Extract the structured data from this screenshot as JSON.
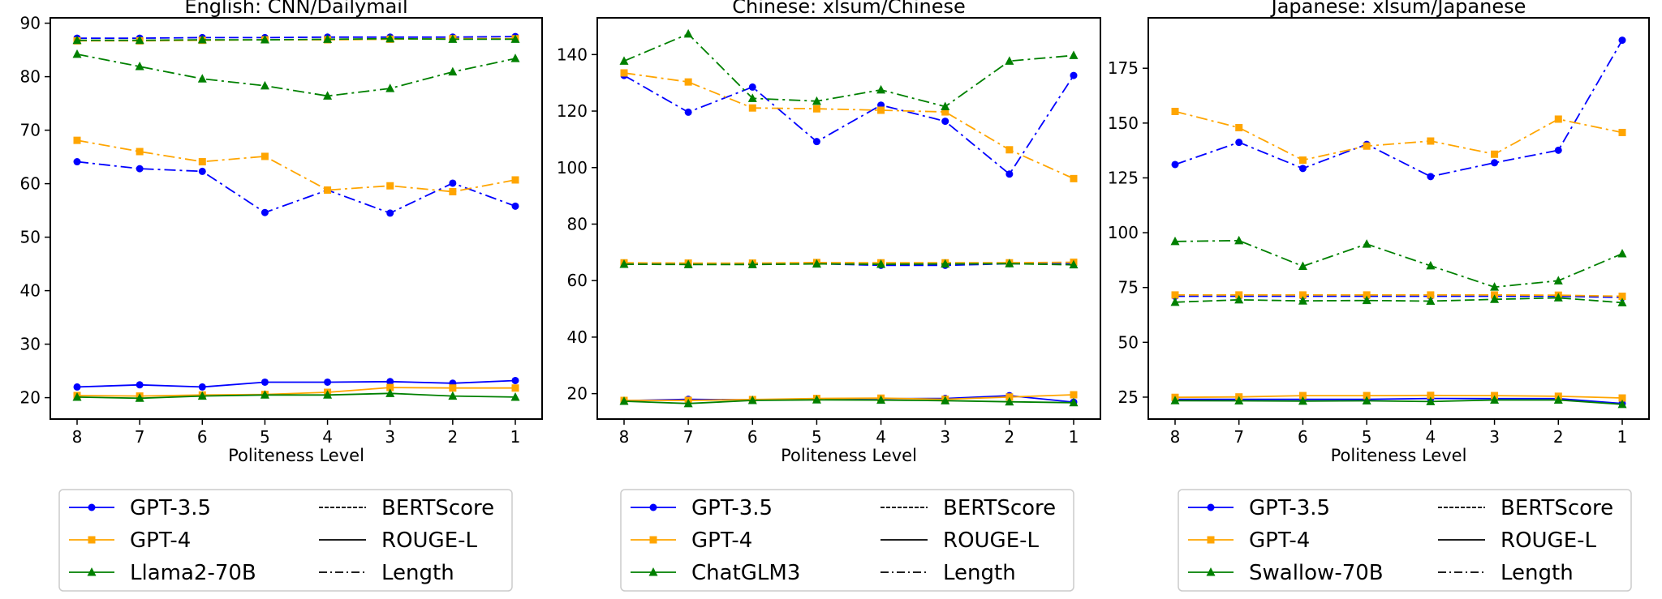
{
  "chart_data": [
    {
      "type": "line",
      "title": "English: CNN/Dailymail",
      "xlabel": "Politeness Level",
      "ylabel": "",
      "categories": [
        "8",
        "7",
        "6",
        "5",
        "4",
        "3",
        "2",
        "1"
      ],
      "ylim": [
        16,
        91
      ],
      "yticks": [
        20,
        30,
        40,
        50,
        60,
        70,
        80,
        90
      ],
      "grid": false,
      "legend": "bottom",
      "series": [
        {
          "model": "GPT-3.5",
          "metric": "BERTScore",
          "values": [
            87.2,
            87.2,
            87.3,
            87.3,
            87.4,
            87.4,
            87.4,
            87.5
          ]
        },
        {
          "model": "GPT-4",
          "metric": "BERTScore",
          "values": [
            86.7,
            86.7,
            86.8,
            86.9,
            86.9,
            87.0,
            87.1,
            87.1
          ]
        },
        {
          "model": "Llama2-70B",
          "metric": "BERTScore",
          "values": [
            86.8,
            86.8,
            86.9,
            86.9,
            87.0,
            87.1,
            87.0,
            87.0
          ]
        },
        {
          "model": "GPT-3.5",
          "metric": "ROUGE-L",
          "values": [
            22.0,
            22.4,
            22.0,
            22.9,
            22.9,
            23.0,
            22.7,
            23.2
          ]
        },
        {
          "model": "GPT-4",
          "metric": "ROUGE-L",
          "values": [
            20.4,
            20.3,
            20.5,
            20.6,
            21.0,
            21.9,
            21.8,
            21.8
          ]
        },
        {
          "model": "Llama2-70B",
          "metric": "ROUGE-L",
          "values": [
            20.1,
            19.9,
            20.3,
            20.5,
            20.5,
            20.8,
            20.3,
            20.1
          ]
        },
        {
          "model": "GPT-3.5",
          "metric": "Length",
          "values": [
            64.1,
            62.8,
            62.3,
            54.6,
            58.8,
            54.5,
            60.1,
            55.8
          ]
        },
        {
          "model": "GPT-4",
          "metric": "Length",
          "values": [
            68.1,
            66.0,
            64.1,
            65.1,
            58.8,
            59.6,
            58.5,
            60.7
          ]
        },
        {
          "model": "Llama2-70B",
          "metric": "Length",
          "values": [
            84.2,
            81.9,
            79.6,
            78.3,
            76.4,
            77.8,
            80.9,
            83.4
          ]
        }
      ],
      "legend_models": [
        "GPT-3.5",
        "GPT-4",
        "Llama2-70B"
      ]
    },
    {
      "type": "line",
      "title": "Chinese: xlsum/Chinese",
      "xlabel": "Politeness Level",
      "ylabel": "",
      "categories": [
        "8",
        "7",
        "6",
        "5",
        "4",
        "3",
        "2",
        "1"
      ],
      "ylim": [
        11,
        153
      ],
      "yticks": [
        20,
        40,
        60,
        80,
        100,
        120,
        140
      ],
      "grid": false,
      "legend": "bottom",
      "series": [
        {
          "model": "GPT-3.5",
          "metric": "BERTScore",
          "values": [
            66.0,
            65.8,
            65.8,
            66.0,
            65.4,
            65.4,
            66.0,
            65.9
          ]
        },
        {
          "model": "GPT-4",
          "metric": "BERTScore",
          "values": [
            66.3,
            66.2,
            66.2,
            66.4,
            66.3,
            66.3,
            66.3,
            66.5
          ]
        },
        {
          "model": "ChatGLM3",
          "metric": "BERTScore",
          "values": [
            65.8,
            65.7,
            65.7,
            65.9,
            65.8,
            65.9,
            66.0,
            65.6
          ]
        },
        {
          "model": "GPT-3.5",
          "metric": "ROUGE-L",
          "values": [
            17.5,
            18.0,
            17.8,
            18.0,
            18.2,
            18.3,
            19.3,
            17.0
          ]
        },
        {
          "model": "GPT-4",
          "metric": "ROUGE-L",
          "values": [
            17.6,
            17.6,
            17.9,
            18.3,
            18.4,
            18.0,
            18.8,
            19.6
          ]
        },
        {
          "model": "ChatGLM3",
          "metric": "ROUGE-L",
          "values": [
            17.3,
            16.5,
            17.6,
            17.8,
            17.7,
            17.5,
            17.1,
            16.8
          ]
        },
        {
          "model": "GPT-3.5",
          "metric": "Length",
          "values": [
            132.6,
            119.6,
            128.5,
            109.2,
            122.1,
            116.4,
            97.7,
            132.6
          ]
        },
        {
          "model": "GPT-4",
          "metric": "Length",
          "values": [
            133.5,
            130.3,
            121.1,
            120.8,
            120.3,
            119.7,
            106.3,
            96.1
          ]
        },
        {
          "model": "ChatGLM3",
          "metric": "Length",
          "values": [
            137.7,
            147.3,
            124.5,
            123.5,
            127.5,
            121.6,
            137.7,
            139.7
          ]
        }
      ],
      "legend_models": [
        "GPT-3.5",
        "GPT-4",
        "ChatGLM3"
      ]
    },
    {
      "type": "line",
      "title": "Japanese: xlsum/Japanese",
      "xlabel": "Politeness Level",
      "ylabel": "",
      "categories": [
        "8",
        "7",
        "6",
        "5",
        "4",
        "3",
        "2",
        "1"
      ],
      "ylim": [
        15,
        198
      ],
      "yticks": [
        25,
        50,
        75,
        100,
        125,
        150,
        175
      ],
      "grid": false,
      "legend": "bottom",
      "series": [
        {
          "model": "GPT-3.5",
          "metric": "BERTScore",
          "values": [
            71.0,
            71.0,
            71.0,
            71.0,
            71.0,
            71.0,
            71.0,
            70.5
          ]
        },
        {
          "model": "GPT-4",
          "metric": "BERTScore",
          "values": [
            71.6,
            71.6,
            71.6,
            71.6,
            71.6,
            71.6,
            71.5,
            71.0
          ]
        },
        {
          "model": "Swallow-70B",
          "metric": "BERTScore",
          "values": [
            68.3,
            69.4,
            68.9,
            69.1,
            68.8,
            69.6,
            70.3,
            68.1
          ]
        },
        {
          "model": "GPT-3.5",
          "metric": "ROUGE-L",
          "values": [
            24.0,
            24.0,
            24.0,
            24.0,
            24.4,
            24.3,
            24.3,
            22.1
          ]
        },
        {
          "model": "GPT-4",
          "metric": "ROUGE-L",
          "values": [
            24.9,
            25.1,
            25.7,
            25.7,
            25.8,
            25.7,
            25.4,
            24.6
          ]
        },
        {
          "model": "Swallow-70B",
          "metric": "ROUGE-L",
          "values": [
            23.4,
            23.3,
            23.2,
            23.3,
            23.0,
            23.7,
            23.7,
            21.7
          ]
        },
        {
          "model": "GPT-3.5",
          "metric": "Length",
          "values": [
            131.1,
            141.2,
            129.3,
            140.3,
            125.6,
            131.9,
            137.6,
            187.8
          ]
        },
        {
          "model": "GPT-4",
          "metric": "Length",
          "values": [
            155.3,
            147.9,
            133.1,
            139.5,
            141.8,
            135.8,
            151.8,
            145.7
          ]
        },
        {
          "model": "Swallow-70B",
          "metric": "Length",
          "values": [
            96.0,
            96.4,
            84.7,
            94.8,
            84.9,
            75.2,
            78.1,
            90.4
          ]
        }
      ],
      "legend_models": [
        "GPT-3.5",
        "GPT-4",
        "Swallow-70B"
      ]
    }
  ],
  "legend_metrics": [
    "BERTScore",
    "ROUGE-L",
    "Length"
  ],
  "colors": {
    "GPT-3.5": "#0000ff",
    "GPT-4": "#ffa500",
    "third": "#008000",
    "axis": "#000000",
    "legend_border": "#cccccc"
  },
  "markers": [
    "circle",
    "square",
    "triangle"
  ],
  "line_styles": {
    "BERTScore": "dashed",
    "ROUGE-L": "solid",
    "Length": "dashdot"
  }
}
